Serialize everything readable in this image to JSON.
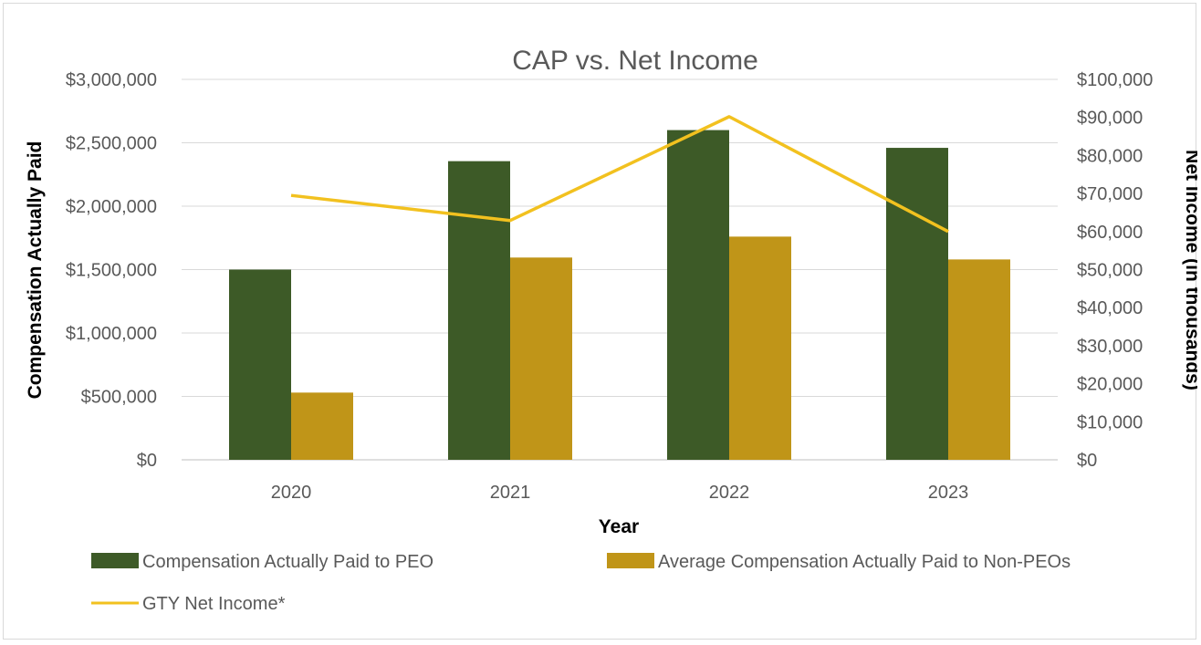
{
  "chart_data": {
    "type": "bar",
    "title": "CAP vs. Net Income",
    "xlabel": "Year",
    "ylabel": "Compensation Actually Paid",
    "y2label": "Net Income (in thousands)",
    "categories": [
      "2020",
      "2021",
      "2022",
      "2023"
    ],
    "ylim": [
      0,
      3000000
    ],
    "y2lim": [
      0,
      100000
    ],
    "y_ticks": [
      "$0",
      "$500,000",
      "$1,000,000",
      "$1,500,000",
      "$2,000,000",
      "$2,500,000",
      "$3,000,000"
    ],
    "y2_ticks": [
      "$0",
      "$10,000",
      "$20,000",
      "$30,000",
      "$40,000",
      "$50,000",
      "$60,000",
      "$70,000",
      "$80,000",
      "$90,000",
      "$100,000"
    ],
    "series": [
      {
        "name": "Compensation Actually Paid to PEO",
        "type": "bar",
        "axis": "left",
        "color": "#3d5a27",
        "values": [
          1500000,
          2355000,
          2600000,
          2460000
        ]
      },
      {
        "name": "Average Compensation Actually Paid to Non-PEOs",
        "type": "bar",
        "axis": "left",
        "color": "#c09518",
        "values": [
          530000,
          1595000,
          1760000,
          1580000
        ]
      },
      {
        "name": "GTY Net Income*",
        "type": "line",
        "axis": "right",
        "color": "#f2c11f",
        "values": [
          69500,
          62900,
          90200,
          60000
        ]
      }
    ],
    "grid": true,
    "legend_position": "bottom"
  }
}
